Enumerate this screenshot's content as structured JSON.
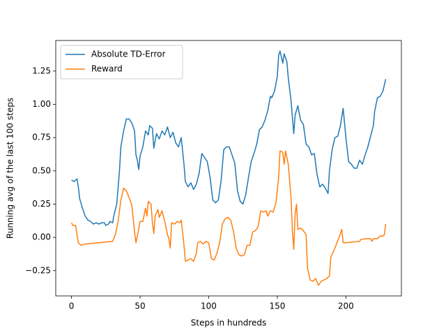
{
  "chart_data": {
    "type": "line",
    "xlabel": "Steps in hundreds",
    "ylabel": "Running  avg of the last 100 steps",
    "xlim": [
      -11.45,
      240.45
    ],
    "ylim": [
      -0.44,
      1.48
    ],
    "xticks": [
      0,
      50,
      100,
      150,
      200
    ],
    "yticks": [
      {
        "value": -0.25,
        "label": "−0.25"
      },
      {
        "value": 0,
        "label": "0.00"
      },
      0.25,
      {
        "value": 0.5,
        "label": "0.50"
      },
      0.75,
      {
        "value": 1,
        "label": "1.00"
      },
      1.25
    ],
    "legend": "upper left",
    "series": [
      {
        "name": "Absolute TD-Error",
        "color": "#1f77b4",
        "x": [
          0,
          2,
          4,
          5,
          6,
          8,
          10,
          12,
          14,
          16,
          18,
          20,
          22,
          24,
          25,
          27,
          28,
          30,
          31,
          33,
          35,
          36,
          38,
          40,
          42,
          44,
          46,
          47,
          48,
          49,
          50,
          52,
          54,
          56,
          57,
          59,
          60,
          62,
          64,
          66,
          68,
          70,
          72,
          74,
          76,
          78,
          80,
          82,
          83,
          85,
          87,
          89,
          91,
          93,
          95,
          97,
          99,
          101,
          103,
          105,
          107,
          109,
          111,
          113,
          115,
          117,
          119,
          121,
          123,
          125,
          127,
          129,
          131,
          133,
          135,
          137,
          139,
          141,
          143,
          145,
          146,
          148,
          150,
          151,
          152,
          154,
          155,
          157,
          158,
          160,
          162,
          163,
          165,
          167,
          169,
          171,
          173,
          175,
          177,
          179,
          181,
          183,
          185,
          187,
          188,
          190,
          192,
          194,
          196,
          198,
          200,
          202,
          204,
          206,
          208,
          210,
          212,
          214,
          216,
          218,
          220,
          221,
          223,
          225,
          227,
          229
        ],
        "values": [
          0.43,
          0.42,
          0.44,
          0.38,
          0.29,
          0.22,
          0.16,
          0.13,
          0.12,
          0.1,
          0.11,
          0.1,
          0.11,
          0.11,
          0.09,
          0.1,
          0.12,
          0.11,
          0.17,
          0.25,
          0.5,
          0.68,
          0.8,
          0.89,
          0.89,
          0.86,
          0.8,
          0.62,
          0.58,
          0.51,
          0.61,
          0.68,
          0.8,
          0.77,
          0.84,
          0.82,
          0.67,
          0.78,
          0.74,
          0.8,
          0.77,
          0.83,
          0.75,
          0.79,
          0.71,
          0.68,
          0.75,
          0.55,
          0.42,
          0.38,
          0.41,
          0.36,
          0.4,
          0.48,
          0.63,
          0.6,
          0.57,
          0.45,
          0.28,
          0.26,
          0.28,
          0.42,
          0.66,
          0.68,
          0.68,
          0.62,
          0.56,
          0.35,
          0.27,
          0.25,
          0.32,
          0.45,
          0.57,
          0.63,
          0.7,
          0.81,
          0.83,
          0.88,
          0.95,
          1.06,
          1.05,
          1.1,
          1.21,
          1.37,
          1.4,
          1.31,
          1.38,
          1.32,
          1.2,
          1.03,
          0.78,
          0.92,
          0.99,
          0.88,
          0.85,
          0.7,
          0.68,
          0.62,
          0.63,
          0.47,
          0.38,
          0.4,
          0.37,
          0.33,
          0.5,
          0.66,
          0.75,
          0.76,
          0.84,
          0.97,
          0.75,
          0.57,
          0.55,
          0.52,
          0.52,
          0.58,
          0.55,
          0.62,
          0.68,
          0.76,
          0.84,
          0.95,
          1.05,
          1.06,
          1.1,
          1.19
        ]
      },
      {
        "name": "Reward",
        "color": "#ff7f0e",
        "x": [
          0,
          1,
          3,
          5,
          7,
          10,
          15,
          20,
          25,
          30,
          32,
          34,
          36,
          38,
          40,
          42,
          44,
          46,
          47,
          48,
          50,
          52,
          54,
          55,
          56,
          58,
          59,
          60,
          61,
          63,
          64,
          66,
          68,
          70,
          71,
          72,
          73,
          75,
          77,
          79,
          80,
          82,
          83,
          85,
          87,
          89,
          91,
          92,
          94,
          96,
          98,
          100,
          102,
          104,
          106,
          108,
          110,
          112,
          114,
          116,
          118,
          120,
          122,
          124,
          126,
          128,
          130,
          132,
          134,
          136,
          138,
          140,
          142,
          143,
          145,
          147,
          149,
          151,
          152,
          154,
          155,
          156,
          158,
          160,
          161,
          162,
          163,
          164,
          165,
          167,
          169,
          171,
          172,
          174,
          176,
          178,
          180,
          182,
          184,
          186,
          188,
          189,
          192,
          195,
          197,
          198,
          200,
          205,
          210,
          211,
          215,
          218,
          219,
          220,
          223,
          225,
          227,
          228,
          229
        ],
        "values": [
          0.11,
          0.09,
          0.09,
          -0.04,
          -0.06,
          -0.05,
          -0.045,
          -0.04,
          -0.035,
          -0.03,
          0.02,
          0.12,
          0.28,
          0.37,
          0.35,
          0.3,
          0.24,
          0.04,
          -0.04,
          0.01,
          0.12,
          0.12,
          0.22,
          0.16,
          0.27,
          0.25,
          0.11,
          0.03,
          0.16,
          0.21,
          0.15,
          0.2,
          0.12,
          0.02,
          -0.01,
          -0.08,
          0.11,
          0.1,
          0.12,
          0.11,
          0.13,
          -0.06,
          -0.18,
          -0.17,
          -0.16,
          -0.18,
          -0.12,
          -0.04,
          -0.03,
          -0.05,
          -0.03,
          -0.04,
          -0.16,
          -0.17,
          -0.12,
          -0.04,
          0.1,
          0.14,
          0.15,
          0.13,
          0.05,
          -0.08,
          -0.13,
          -0.14,
          -0.13,
          -0.06,
          -0.06,
          0.04,
          0.05,
          0.08,
          0.2,
          0.19,
          0.2,
          0.16,
          0.2,
          0.19,
          0.26,
          0.45,
          0.65,
          0.64,
          0.55,
          0.65,
          0.55,
          0.3,
          0.05,
          -0.09,
          0.18,
          0.25,
          0.06,
          0.07,
          0.05,
          0.02,
          -0.23,
          -0.32,
          -0.33,
          -0.31,
          -0.36,
          -0.33,
          -0.32,
          -0.31,
          -0.29,
          -0.15,
          -0.08,
          0.0,
          0.06,
          -0.04,
          -0.04,
          -0.035,
          -0.03,
          -0.015,
          -0.01,
          -0.01,
          -0.03,
          -0.01,
          -0.01,
          0.01,
          0.01,
          0.02,
          0.1
        ]
      }
    ]
  }
}
